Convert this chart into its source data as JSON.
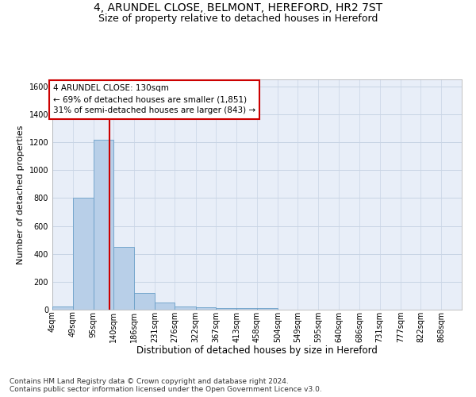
{
  "title": "4, ARUNDEL CLOSE, BELMONT, HEREFORD, HR2 7ST",
  "subtitle": "Size of property relative to detached houses in Hereford",
  "xlabel": "Distribution of detached houses by size in Hereford",
  "ylabel": "Number of detached properties",
  "footnote": "Contains HM Land Registry data © Crown copyright and database right 2024.\nContains public sector information licensed under the Open Government Licence v3.0.",
  "bar_edges": [
    4,
    49,
    95,
    140,
    186,
    231,
    276,
    322,
    367,
    413,
    458,
    504,
    549,
    595,
    640,
    686,
    731,
    777,
    822,
    868,
    913
  ],
  "bar_heights": [
    20,
    800,
    1220,
    450,
    120,
    50,
    20,
    15,
    10,
    10,
    10,
    0,
    0,
    0,
    0,
    0,
    0,
    0,
    0,
    0
  ],
  "bar_color": "#b8cfe8",
  "bar_edgecolor": "#6a9fc8",
  "property_line_x": 130,
  "annotation_line1": "4 ARUNDEL CLOSE: 130sqm",
  "annotation_line2": "← 69% of detached houses are smaller (1,851)",
  "annotation_line3": "31% of semi-detached houses are larger (843) →",
  "annotation_box_color": "#ffffff",
  "annotation_border_color": "#cc0000",
  "vline_color": "#cc0000",
  "ylim": [
    0,
    1650
  ],
  "yticks": [
    0,
    200,
    400,
    600,
    800,
    1000,
    1200,
    1400,
    1600
  ],
  "grid_color": "#c8d4e4",
  "background_color": "#e8eef8",
  "title_fontsize": 10,
  "subtitle_fontsize": 9,
  "xlabel_fontsize": 8.5,
  "ylabel_fontsize": 8,
  "tick_fontsize": 7,
  "annotation_fontsize": 7.5,
  "footnote_fontsize": 6.5
}
